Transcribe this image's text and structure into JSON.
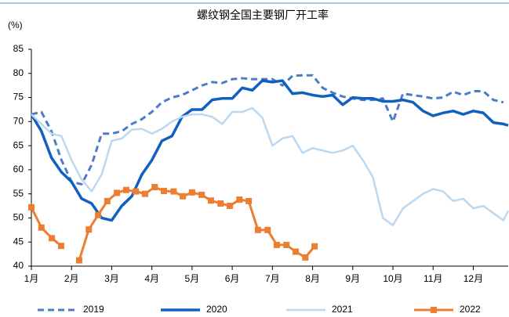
{
  "chart_data": {
    "type": "line",
    "title": "螺纹钢全国主要钢厂开工率",
    "y_label": "(%)",
    "xlim": [
      1,
      12.87
    ],
    "ylim": [
      40,
      85
    ],
    "xticks": [
      {
        "value": 1,
        "label": "1月"
      },
      {
        "value": 2,
        "label": "2月"
      },
      {
        "value": 3,
        "label": "3月"
      },
      {
        "value": 4,
        "label": "4月"
      },
      {
        "value": 5,
        "label": "5月"
      },
      {
        "value": 6,
        "label": "6月"
      },
      {
        "value": 7,
        "label": "7月"
      },
      {
        "value": 8,
        "label": "8月"
      },
      {
        "value": 9,
        "label": "9月"
      },
      {
        "value": 10,
        "label": "10月"
      },
      {
        "value": 11,
        "label": "11月"
      },
      {
        "value": 12,
        "label": "12月"
      }
    ],
    "yticks": [
      40,
      45,
      50,
      55,
      60,
      65,
      70,
      75,
      80,
      85
    ],
    "grid": false,
    "legend": "bottom",
    "series": [
      {
        "name": "2019",
        "color": "#4a7cc7",
        "dash": true,
        "x": [
          1,
          1.25,
          1.5,
          1.75,
          2,
          2.25,
          2.5,
          2.75,
          3,
          3.25,
          3.5,
          3.75,
          4,
          4.25,
          4.5,
          4.75,
          5,
          5.25,
          5.5,
          5.75,
          6,
          6.25,
          6.5,
          6.75,
          7,
          7.25,
          7.5,
          7.75,
          8,
          8.25,
          8.5,
          8.75,
          9,
          9.25,
          9.5,
          9.75,
          10,
          10.25,
          10.5,
          10.75,
          11,
          11.25,
          11.5,
          11.75,
          12,
          12.25,
          12.5,
          12.75
        ],
        "values": [
          71.5,
          72,
          68,
          62,
          57.5,
          57,
          61,
          67.5,
          67.5,
          68,
          69.5,
          70.5,
          72,
          74,
          75,
          75.5,
          76.5,
          77.5,
          78.2,
          78,
          78.8,
          79,
          78.8,
          78.8,
          78.8,
          77.5,
          79.5,
          79.6,
          79.6,
          77,
          76,
          75.2,
          74.8,
          74.5,
          74.5,
          74.8,
          70,
          75.8,
          75.5,
          75.2,
          74.8,
          75,
          76.2,
          75.5,
          76.3,
          76.3,
          74.5,
          74
        ]
      },
      {
        "name": "2020",
        "color": "#1060c0",
        "x": [
          1,
          1.25,
          1.5,
          1.75,
          2,
          2.25,
          2.5,
          2.75,
          3,
          3.25,
          3.5,
          3.75,
          4,
          4.25,
          4.5,
          4.75,
          5,
          5.25,
          5.5,
          5.75,
          6,
          6.25,
          6.5,
          6.75,
          7,
          7.25,
          7.5,
          7.75,
          8,
          8.25,
          8.5,
          8.75,
          9,
          9.25,
          9.5,
          9.75,
          10,
          10.25,
          10.5,
          10.75,
          11,
          11.25,
          11.5,
          11.75,
          12,
          12.25,
          12.5,
          12.75,
          12.87
        ],
        "values": [
          71.5,
          68,
          62.5,
          59.5,
          57.5,
          54,
          53,
          50,
          49.5,
          52.5,
          54.5,
          59,
          62,
          66,
          67,
          71,
          72.5,
          72.5,
          74.5,
          74.8,
          74.8,
          77,
          76.5,
          78.5,
          78.2,
          78.5,
          75.8,
          76,
          75.5,
          75.2,
          75.5,
          73.5,
          75,
          74.8,
          74.8,
          74.2,
          74.2,
          74.5,
          74,
          72.2,
          71.2,
          71.8,
          72.2,
          71.5,
          72.2,
          71.8,
          69.8,
          69.5,
          69.2
        ]
      },
      {
        "name": "2021",
        "color": "#bcd8f0",
        "x": [
          1,
          1.25,
          1.5,
          1.75,
          2,
          2.25,
          2.5,
          2.75,
          3,
          3.25,
          3.5,
          3.75,
          4,
          4.25,
          4.5,
          4.75,
          5,
          5.25,
          5.5,
          5.75,
          6,
          6.25,
          6.5,
          6.75,
          7,
          7.25,
          7.5,
          7.75,
          8,
          8.25,
          8.5,
          8.75,
          9,
          9.25,
          9.5,
          9.75,
          10,
          10.25,
          10.5,
          10.75,
          11,
          11.25,
          11.5,
          11.75,
          12,
          12.25,
          12.5,
          12.75,
          12.87
        ],
        "values": [
          71.5,
          69.5,
          67.5,
          67,
          62,
          58,
          55.5,
          59,
          66,
          66.5,
          68.3,
          68.5,
          67.5,
          68.5,
          70,
          71,
          71.5,
          71.5,
          71,
          69.5,
          72,
          72,
          72.8,
          70.8,
          65,
          66.5,
          67,
          63.5,
          64.5,
          64,
          63.5,
          64,
          65,
          62,
          58.5,
          50,
          48.5,
          52,
          53.5,
          55,
          56,
          55.5,
          53.5,
          54,
          52,
          52.5,
          51,
          49.5,
          51.5
        ]
      },
      {
        "name": "2022",
        "color": "#ed7d31",
        "marker": "square",
        "x": [
          1,
          1.25,
          1.51,
          1.74,
          1.98,
          2.19,
          2.43,
          2.66,
          2.89,
          3.13,
          3.36,
          3.6,
          3.83,
          4.07,
          4.3,
          4.54,
          4.77,
          5.0,
          5.24,
          5.47,
          5.71,
          5.94,
          6.18,
          6.41,
          6.64,
          6.88,
          7.11,
          7.35,
          7.58,
          7.82,
          8.05
        ],
        "values": [
          52.2,
          48,
          45.8,
          44.2,
          null,
          41.2,
          47.6,
          50.6,
          53.5,
          55.2,
          55.8,
          55.5,
          55,
          56.4,
          55.6,
          55.5,
          54.5,
          55.3,
          54.8,
          53.6,
          53,
          52.5,
          53.8,
          53.5,
          47.5,
          47.5,
          44.4,
          44.4,
          43,
          41.8,
          44.1
        ]
      }
    ]
  }
}
